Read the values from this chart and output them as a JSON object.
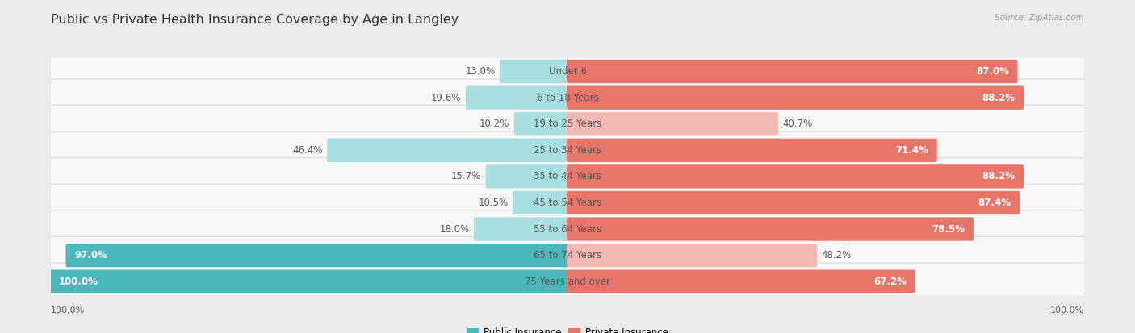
{
  "title": "Public vs Private Health Insurance Coverage by Age in Langley",
  "source": "Source: ZipAtlas.com",
  "categories": [
    "Under 6",
    "6 to 18 Years",
    "19 to 25 Years",
    "25 to 34 Years",
    "35 to 44 Years",
    "45 to 54 Years",
    "55 to 64 Years",
    "65 to 74 Years",
    "75 Years and over"
  ],
  "public_values": [
    13.0,
    19.6,
    10.2,
    46.4,
    15.7,
    10.5,
    18.0,
    97.0,
    100.0
  ],
  "private_values": [
    87.0,
    88.2,
    40.7,
    71.4,
    88.2,
    87.4,
    78.5,
    48.2,
    67.2
  ],
  "public_color": "#4db8bc",
  "private_color": "#e8756a",
  "public_color_light": "#a8dfe0",
  "private_color_light": "#f2b8b3",
  "bg_color": "#ebebeb",
  "row_bg_color": "#f8f8f8",
  "row_border_color": "#d8d8d8",
  "title_color": "#333333",
  "label_color": "#555555",
  "value_color_dark": "#555555",
  "source_color": "#999999",
  "title_fontsize": 11.5,
  "cat_fontsize": 8.5,
  "value_fontsize": 8.5,
  "legend_fontsize": 8.5,
  "max_value": 100.0,
  "pub_light_threshold": 50,
  "priv_light_threshold": 60
}
